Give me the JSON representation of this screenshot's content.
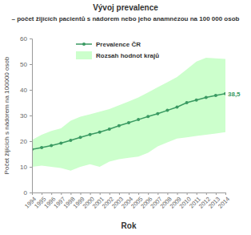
{
  "chart_data": {
    "type": "line",
    "title": "Vývoj prevalence",
    "subtitle": "– počet žijících pacientů s nádorem nebo jeho anamnézou na 100 000 osob",
    "x_label": "Rok",
    "y_label": "Počet žijících s nádorem na 100000 osob",
    "x": [
      1994,
      1995,
      1996,
      1997,
      1998,
      1999,
      2000,
      2001,
      2002,
      2003,
      2004,
      2005,
      2006,
      2007,
      2008,
      2009,
      2010,
      2011,
      2012,
      2013,
      2014
    ],
    "xlim": [
      1994,
      2014
    ],
    "xticks": [
      1994,
      1995,
      1996,
      1997,
      1998,
      1999,
      2000,
      2001,
      2002,
      2003,
      2004,
      2005,
      2006,
      2007,
      2008,
      2009,
      2010,
      2011,
      2012,
      2013,
      2014
    ],
    "ylim": [
      0,
      60
    ],
    "yticks": [
      0,
      10,
      20,
      30,
      40,
      50,
      60
    ],
    "grid": false,
    "legend": "upper left",
    "data_labels": true,
    "series": [
      {
        "name": "Prevalence ČR",
        "type": "line",
        "color": "#3a9a62",
        "marker": "circle",
        "values": [
          16.8,
          17.5,
          18.3,
          19.2,
          20.3,
          21.5,
          22.6,
          23.5,
          24.7,
          26.0,
          27.2,
          28.4,
          29.6,
          30.7,
          32.0,
          33.3,
          35.0,
          36.0,
          37.0,
          37.8,
          38.5
        ],
        "value_labels": [
          null,
          null,
          null,
          null,
          null,
          null,
          null,
          null,
          null,
          null,
          null,
          null,
          null,
          null,
          null,
          null,
          null,
          null,
          null,
          null,
          "38,5"
        ]
      },
      {
        "name": "Rozsah hodnot krajů",
        "type": "area",
        "color": "#ccffcc",
        "lower": [
          10,
          10.5,
          10,
          9.5,
          8.5,
          10,
          11,
          10,
          12,
          13,
          13.5,
          14,
          15.5,
          18,
          19.5,
          21,
          21.5,
          22,
          22.5,
          23,
          23.5
        ],
        "upper": [
          20.5,
          22.5,
          24,
          25,
          28,
          29.5,
          30.5,
          31.5,
          32.5,
          34,
          35.5,
          37,
          39,
          41,
          43,
          45,
          48,
          51,
          52.5,
          52.3,
          52
        ]
      }
    ]
  }
}
